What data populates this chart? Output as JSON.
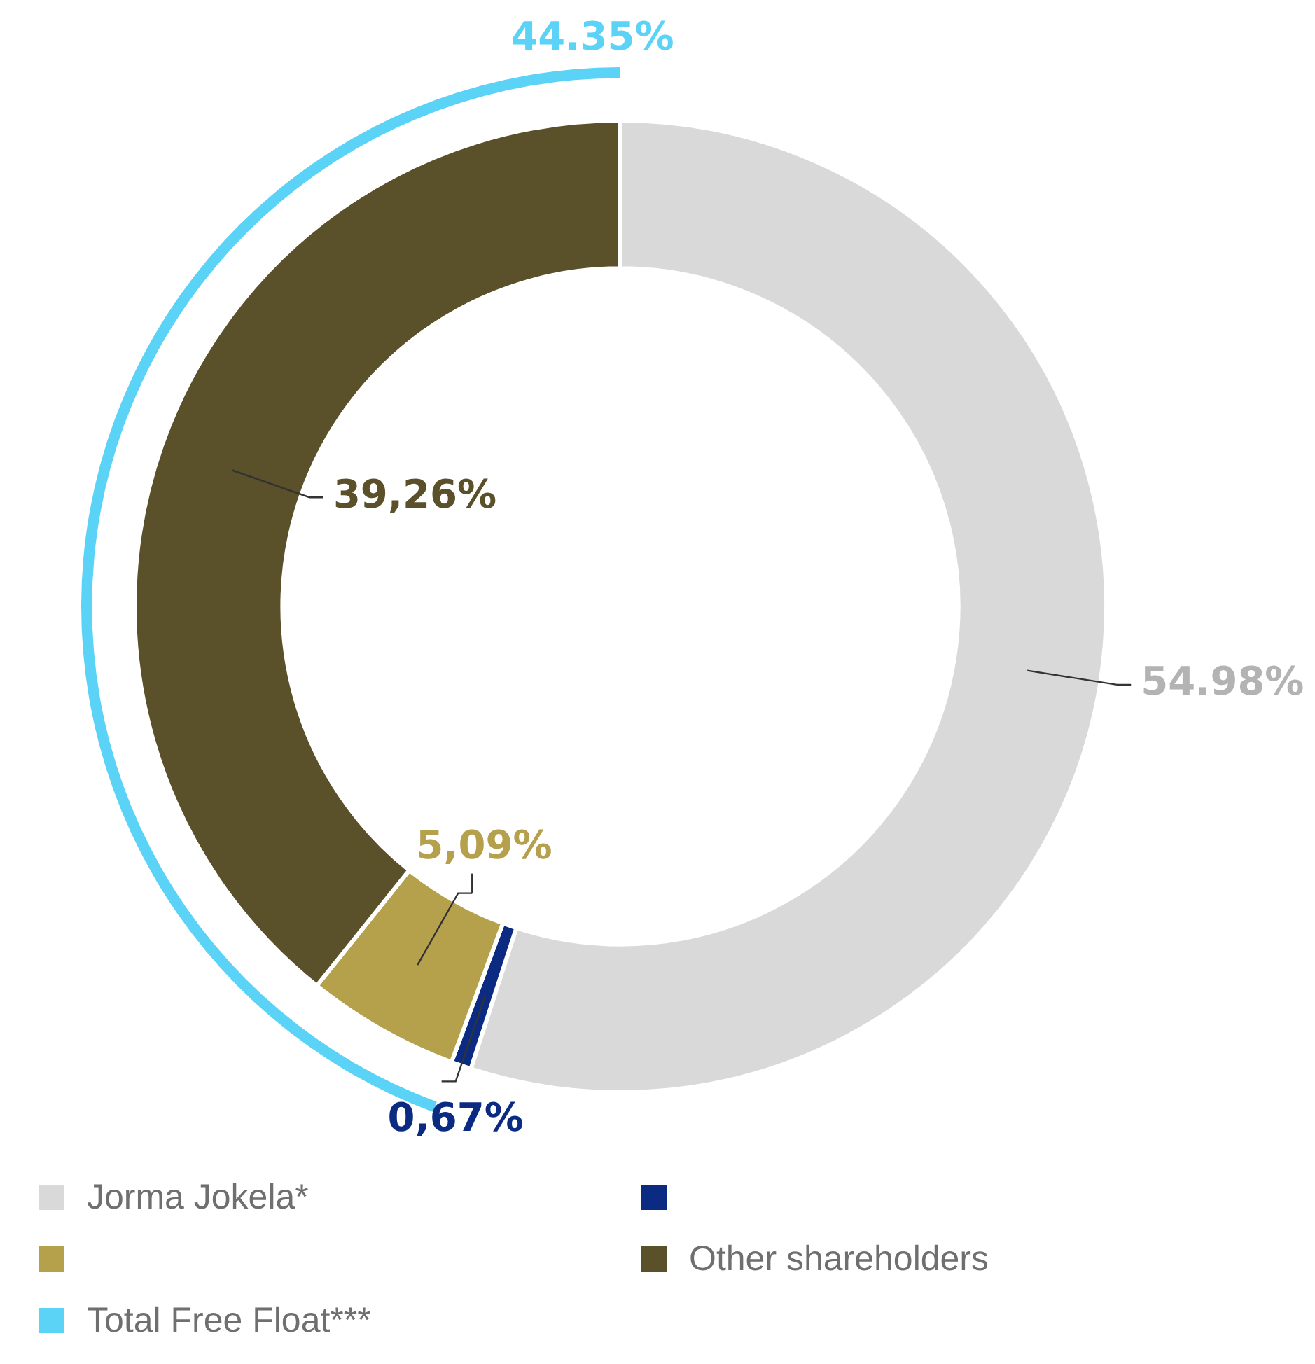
{
  "chart_data": {
    "type": "donut",
    "categories": [
      "Jorma Jokela*",
      null,
      null,
      "Other shareholders",
      "Total Free Float***"
    ],
    "series": [
      {
        "values": [
          54.98,
          0.67,
          5.09,
          39.26,
          null
        ],
        "colors": [
          "#d9d9d9",
          "#0b2a82",
          "#b5a04c",
          "#5a5029",
          null
        ],
        "value_labels": [
          "54.98%",
          "0,67%",
          "5,09%",
          "39,26%",
          null
        ]
      },
      {
        "values": [
          null,
          null,
          null,
          null,
          44.35
        ],
        "colors": [
          null,
          null,
          null,
          null,
          "#5bd3f7"
        ],
        "value_labels": [
          null,
          null,
          null,
          null,
          "44.35%"
        ]
      }
    ],
    "legend": "bottom"
  }
}
